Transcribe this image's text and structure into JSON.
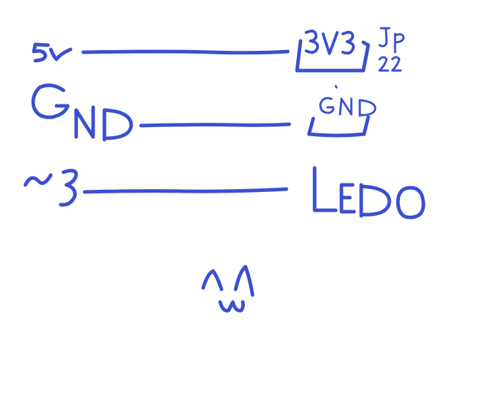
{
  "ink_color": "#3a4fd0",
  "background": "#ffffff",
  "connections": [
    {
      "left_label": "5V",
      "right_label": "3V3",
      "right_note": "JP 22",
      "right_boxed": true
    },
    {
      "left_label": "GND",
      "right_label": "GND",
      "right_boxed": true
    },
    {
      "left_label": "~3",
      "right_label": "LED0",
      "right_boxed": false
    }
  ],
  "doodle": "^w^"
}
